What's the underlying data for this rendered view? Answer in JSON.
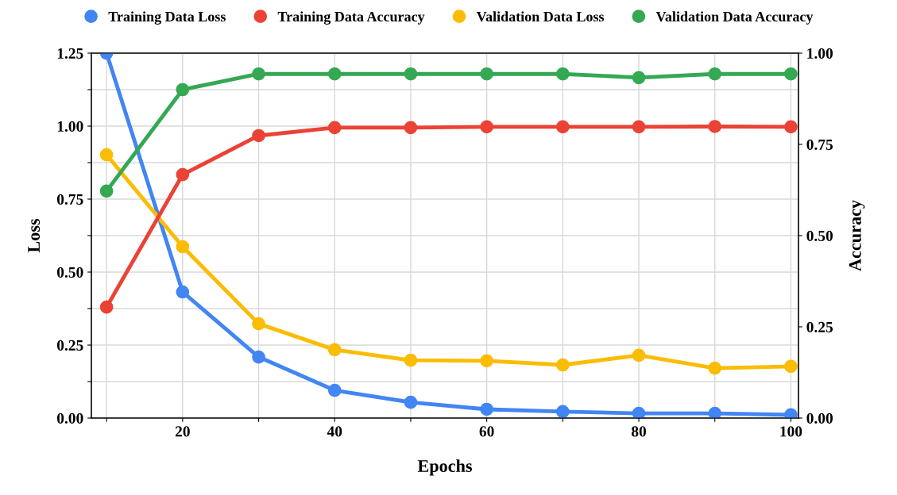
{
  "chart_data": {
    "type": "line",
    "xlabel": "Epochs",
    "ylabel": "Loss",
    "y2label": "Accuracy",
    "x": [
      10,
      20,
      30,
      40,
      50,
      60,
      70,
      80,
      90,
      100
    ],
    "series": [
      {
        "name": "Training Data Loss",
        "color": "#4285f4",
        "values": [
          1.25,
          0.432,
          0.209,
          0.095,
          0.054,
          0.03,
          0.022,
          0.016,
          0.016,
          0.011
        ]
      },
      {
        "name": "Training Data Accuracy",
        "color": "#ea4335",
        "axis": "y2",
        "values": [
          0.304,
          0.667,
          0.774,
          0.796,
          0.796,
          0.798,
          0.798,
          0.798,
          0.799,
          0.798
        ]
      },
      {
        "name": "Validation Data Loss",
        "color": "#fbbc04",
        "values": [
          0.902,
          0.587,
          0.323,
          0.234,
          0.198,
          0.196,
          0.182,
          0.215,
          0.171,
          0.177
        ]
      },
      {
        "name": "Validation Data Accuracy",
        "color": "#34a853",
        "axis": "y2",
        "values": [
          0.622,
          0.9,
          0.943,
          0.943,
          0.943,
          0.943,
          0.943,
          0.933,
          0.943,
          0.943
        ]
      }
    ],
    "xlim": [
      8,
      101
    ],
    "xticks": [
      {
        "value": 10,
        "label": null
      },
      20,
      {
        "value": 30,
        "label": null
      },
      40,
      {
        "value": 50,
        "label": null
      },
      60,
      {
        "value": 70,
        "label": null
      },
      80,
      {
        "value": 90,
        "label": null
      },
      100
    ],
    "ylim": [
      0,
      1.25
    ],
    "yticks": [
      {
        "value": 0,
        "label": "0.00"
      },
      {
        "value": 0.125,
        "label": null
      },
      {
        "value": 0.25,
        "label": "0.25"
      },
      {
        "value": 0.375,
        "label": null
      },
      {
        "value": 0.5,
        "label": "0.50"
      },
      {
        "value": 0.625,
        "label": null
      },
      {
        "value": 0.75,
        "label": "0.75"
      },
      {
        "value": 0.875,
        "label": null
      },
      {
        "value": 1.0,
        "label": "1.00"
      },
      {
        "value": 1.125,
        "label": null
      },
      {
        "value": 1.25,
        "label": "1.25"
      }
    ],
    "y2lim": [
      0,
      1.0
    ],
    "y2ticks": [
      {
        "value": 0,
        "label": "0.00"
      },
      {
        "value": 0.25,
        "label": "0.25"
      },
      {
        "value": 0.5,
        "label": "0.50"
      },
      {
        "value": 0.75,
        "label": "0.75"
      },
      {
        "value": 1.0,
        "label": "1.00"
      }
    ],
    "grid": true,
    "legend": "top",
    "marker": "circle",
    "line_style": "solid"
  }
}
